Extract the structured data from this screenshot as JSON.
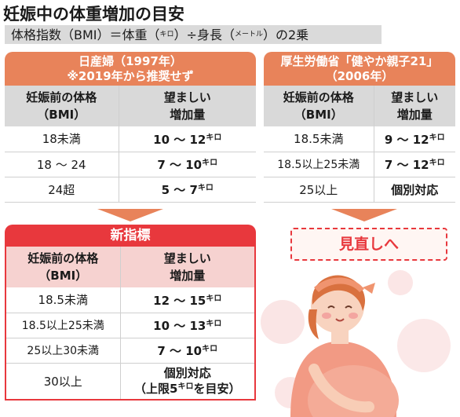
{
  "title": "妊娠中の体重増加の目安",
  "formula": {
    "text": "体格指数（BMI）＝体重（",
    "unit_weight": "キロ",
    "middle": "）÷身長（",
    "unit_height": "メートル",
    "end": "）の2乗"
  },
  "old_standard": {
    "heading_line1": "日産婦（1997年）",
    "heading_line2": "※2019年から推奨せず",
    "col1_line1": "妊娠前の体格",
    "col1_line2": "（BMI）",
    "col2_line1": "望ましい",
    "col2_line2": "増加量",
    "rows": [
      {
        "bmi": "18未満",
        "range": "10 ～ 12",
        "unit": "キロ"
      },
      {
        "bmi": "18 ～ 24",
        "range": "7 ～ 10",
        "unit": "キロ"
      },
      {
        "bmi": "24超",
        "range": "5 ～ 7",
        "unit": "キロ"
      }
    ]
  },
  "mhlw_standard": {
    "heading_line1": "厚生労働省「健やか親子21」",
    "heading_line2": "（2006年）",
    "col1_line1": "妊娠前の体格",
    "col1_line2": "（BMI）",
    "col2_line1": "望ましい",
    "col2_line2": "増加量",
    "rows": [
      {
        "bmi": "18.5未満",
        "range": "9 ～ 12",
        "unit": "キロ"
      },
      {
        "bmi": "18.5以上25未満",
        "range": "7 ～ 12",
        "unit": "キロ"
      },
      {
        "bmi": "25以上",
        "range": "個別対応",
        "unit": ""
      }
    ]
  },
  "new_standard": {
    "heading": "新指標",
    "col1_line1": "妊娠前の体格",
    "col1_line2": "（BMI）",
    "col2_line1": "望ましい",
    "col2_line2": "増加量",
    "rows": [
      {
        "bmi": "18.5未満",
        "range": "12 ～ 15",
        "unit": "キロ"
      },
      {
        "bmi": "18.5以上25未満",
        "range": "10 ～ 13",
        "unit": "キロ"
      },
      {
        "bmi": "25以上30未満",
        "range": "7 ～ 10",
        "unit": "キロ"
      }
    ],
    "last_row": {
      "bmi": "30以上",
      "line1": "個別対応",
      "line2_a": "（上限5",
      "line2_unit": "キロ",
      "line2_b": "を目安）"
    }
  },
  "review_label": "見直しへ",
  "colors": {
    "orange": "#e8835a",
    "red": "#e8383d",
    "gray": "#d9d9d9",
    "pink": "#f6d2d0"
  },
  "illustration": "pregnant-woman-illustration"
}
